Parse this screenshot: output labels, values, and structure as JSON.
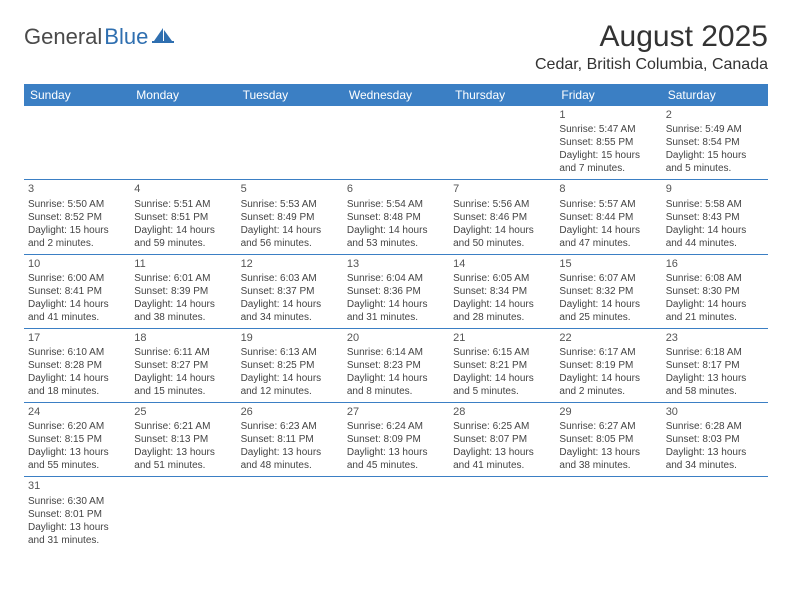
{
  "logo": {
    "text1": "General",
    "text2": "Blue"
  },
  "title": "August 2025",
  "location": "Cedar, British Columbia, Canada",
  "colors": {
    "header_bg": "#3b7fc4",
    "header_text": "#ffffff",
    "rule": "#3b7fc4",
    "logo_gray": "#4a4a4a",
    "logo_blue": "#2f6fb0"
  },
  "weekdays": [
    "Sunday",
    "Monday",
    "Tuesday",
    "Wednesday",
    "Thursday",
    "Friday",
    "Saturday"
  ],
  "weeks": [
    [
      null,
      null,
      null,
      null,
      null,
      {
        "n": "1",
        "sr": "Sunrise: 5:47 AM",
        "ss": "Sunset: 8:55 PM",
        "dl": "Daylight: 15 hours and 7 minutes."
      },
      {
        "n": "2",
        "sr": "Sunrise: 5:49 AM",
        "ss": "Sunset: 8:54 PM",
        "dl": "Daylight: 15 hours and 5 minutes."
      }
    ],
    [
      {
        "n": "3",
        "sr": "Sunrise: 5:50 AM",
        "ss": "Sunset: 8:52 PM",
        "dl": "Daylight: 15 hours and 2 minutes."
      },
      {
        "n": "4",
        "sr": "Sunrise: 5:51 AM",
        "ss": "Sunset: 8:51 PM",
        "dl": "Daylight: 14 hours and 59 minutes."
      },
      {
        "n": "5",
        "sr": "Sunrise: 5:53 AM",
        "ss": "Sunset: 8:49 PM",
        "dl": "Daylight: 14 hours and 56 minutes."
      },
      {
        "n": "6",
        "sr": "Sunrise: 5:54 AM",
        "ss": "Sunset: 8:48 PM",
        "dl": "Daylight: 14 hours and 53 minutes."
      },
      {
        "n": "7",
        "sr": "Sunrise: 5:56 AM",
        "ss": "Sunset: 8:46 PM",
        "dl": "Daylight: 14 hours and 50 minutes."
      },
      {
        "n": "8",
        "sr": "Sunrise: 5:57 AM",
        "ss": "Sunset: 8:44 PM",
        "dl": "Daylight: 14 hours and 47 minutes."
      },
      {
        "n": "9",
        "sr": "Sunrise: 5:58 AM",
        "ss": "Sunset: 8:43 PM",
        "dl": "Daylight: 14 hours and 44 minutes."
      }
    ],
    [
      {
        "n": "10",
        "sr": "Sunrise: 6:00 AM",
        "ss": "Sunset: 8:41 PM",
        "dl": "Daylight: 14 hours and 41 minutes."
      },
      {
        "n": "11",
        "sr": "Sunrise: 6:01 AM",
        "ss": "Sunset: 8:39 PM",
        "dl": "Daylight: 14 hours and 38 minutes."
      },
      {
        "n": "12",
        "sr": "Sunrise: 6:03 AM",
        "ss": "Sunset: 8:37 PM",
        "dl": "Daylight: 14 hours and 34 minutes."
      },
      {
        "n": "13",
        "sr": "Sunrise: 6:04 AM",
        "ss": "Sunset: 8:36 PM",
        "dl": "Daylight: 14 hours and 31 minutes."
      },
      {
        "n": "14",
        "sr": "Sunrise: 6:05 AM",
        "ss": "Sunset: 8:34 PM",
        "dl": "Daylight: 14 hours and 28 minutes."
      },
      {
        "n": "15",
        "sr": "Sunrise: 6:07 AM",
        "ss": "Sunset: 8:32 PM",
        "dl": "Daylight: 14 hours and 25 minutes."
      },
      {
        "n": "16",
        "sr": "Sunrise: 6:08 AM",
        "ss": "Sunset: 8:30 PM",
        "dl": "Daylight: 14 hours and 21 minutes."
      }
    ],
    [
      {
        "n": "17",
        "sr": "Sunrise: 6:10 AM",
        "ss": "Sunset: 8:28 PM",
        "dl": "Daylight: 14 hours and 18 minutes."
      },
      {
        "n": "18",
        "sr": "Sunrise: 6:11 AM",
        "ss": "Sunset: 8:27 PM",
        "dl": "Daylight: 14 hours and 15 minutes."
      },
      {
        "n": "19",
        "sr": "Sunrise: 6:13 AM",
        "ss": "Sunset: 8:25 PM",
        "dl": "Daylight: 14 hours and 12 minutes."
      },
      {
        "n": "20",
        "sr": "Sunrise: 6:14 AM",
        "ss": "Sunset: 8:23 PM",
        "dl": "Daylight: 14 hours and 8 minutes."
      },
      {
        "n": "21",
        "sr": "Sunrise: 6:15 AM",
        "ss": "Sunset: 8:21 PM",
        "dl": "Daylight: 14 hours and 5 minutes."
      },
      {
        "n": "22",
        "sr": "Sunrise: 6:17 AM",
        "ss": "Sunset: 8:19 PM",
        "dl": "Daylight: 14 hours and 2 minutes."
      },
      {
        "n": "23",
        "sr": "Sunrise: 6:18 AM",
        "ss": "Sunset: 8:17 PM",
        "dl": "Daylight: 13 hours and 58 minutes."
      }
    ],
    [
      {
        "n": "24",
        "sr": "Sunrise: 6:20 AM",
        "ss": "Sunset: 8:15 PM",
        "dl": "Daylight: 13 hours and 55 minutes."
      },
      {
        "n": "25",
        "sr": "Sunrise: 6:21 AM",
        "ss": "Sunset: 8:13 PM",
        "dl": "Daylight: 13 hours and 51 minutes."
      },
      {
        "n": "26",
        "sr": "Sunrise: 6:23 AM",
        "ss": "Sunset: 8:11 PM",
        "dl": "Daylight: 13 hours and 48 minutes."
      },
      {
        "n": "27",
        "sr": "Sunrise: 6:24 AM",
        "ss": "Sunset: 8:09 PM",
        "dl": "Daylight: 13 hours and 45 minutes."
      },
      {
        "n": "28",
        "sr": "Sunrise: 6:25 AM",
        "ss": "Sunset: 8:07 PM",
        "dl": "Daylight: 13 hours and 41 minutes."
      },
      {
        "n": "29",
        "sr": "Sunrise: 6:27 AM",
        "ss": "Sunset: 8:05 PM",
        "dl": "Daylight: 13 hours and 38 minutes."
      },
      {
        "n": "30",
        "sr": "Sunrise: 6:28 AM",
        "ss": "Sunset: 8:03 PM",
        "dl": "Daylight: 13 hours and 34 minutes."
      }
    ],
    [
      {
        "n": "31",
        "sr": "Sunrise: 6:30 AM",
        "ss": "Sunset: 8:01 PM",
        "dl": "Daylight: 13 hours and 31 minutes."
      },
      null,
      null,
      null,
      null,
      null,
      null
    ]
  ]
}
